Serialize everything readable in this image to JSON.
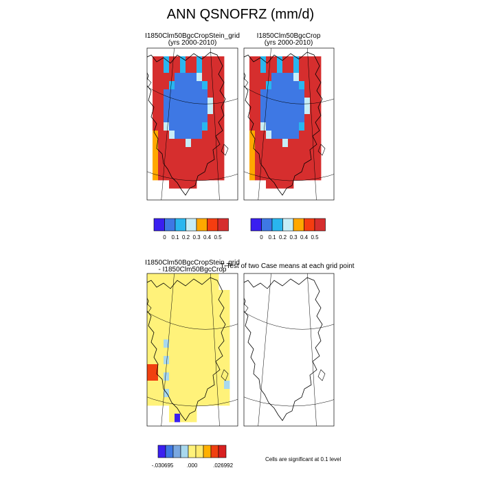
{
  "title": "ANN QSNOFRZ (mm/d)",
  "panels": {
    "top_left": {
      "title": "I1850Clm50BgcCropStein_grid",
      "subtitle": "(yrs 2000-2010)"
    },
    "top_right": {
      "title": "I1850Clm50BgcCrop",
      "subtitle": "(yrs 2000-2010)"
    },
    "bottom_left": {
      "title": "I1850Clm50BgcCropStein_grid",
      "subtitle": "- I1850Clm50BgcCrop"
    },
    "bottom_right": {
      "title": "T-Test of two Case means at each grid point"
    }
  },
  "colorbar_top": {
    "colors": [
      "#3a1ff0",
      "#3e78e4",
      "#29b6ef",
      "#c7eef7",
      "#ffa800",
      "#f53d10",
      "#d62e2e"
    ],
    "labels": [
      "0",
      "0.1",
      "0.2",
      "0.3",
      "0.4",
      "0.5"
    ]
  },
  "colorbar_diff": {
    "colors": [
      "#3a1ff0",
      "#3e78e4",
      "#7aa8e0",
      "#a8d8ee",
      "#fff27a",
      "#ffeb6e",
      "#ffb000",
      "#f04010",
      "#d82020"
    ],
    "labels": [
      "-.030695",
      ".000",
      ".026992"
    ]
  },
  "significance_note": "Cells are significant at 0.1 level",
  "chart_data": [
    {
      "type": "heatmap",
      "title": "I1850Clm50BgcCropStein_grid",
      "subtitle": "(yrs 2000-2010)",
      "region": "Greenland (polar projection)",
      "color_levels": [
        0,
        0.1,
        0.2,
        0.3,
        0.4,
        0.5
      ],
      "description_values": {
        "interior": "< 0.1",
        "coast": "> 0.5"
      }
    },
    {
      "type": "heatmap",
      "title": "I1850Clm50BgcCrop",
      "subtitle": "(yrs 2000-2010)",
      "region": "Greenland (polar projection)",
      "color_levels": [
        0,
        0.1,
        0.2,
        0.3,
        0.4,
        0.5
      ]
    },
    {
      "type": "heatmap",
      "title": "I1850Clm50BgcCropStein_grid - I1850Clm50BgcCrop",
      "region": "Greenland (polar projection)",
      "range": [
        -0.030695,
        0.026992
      ],
      "center": 0.0
    },
    {
      "type": "heatmap",
      "title": "T-Test of two Case means at each grid point",
      "region": "Greenland (polar projection)",
      "note": "Cells are significant at 0.1 level"
    }
  ]
}
